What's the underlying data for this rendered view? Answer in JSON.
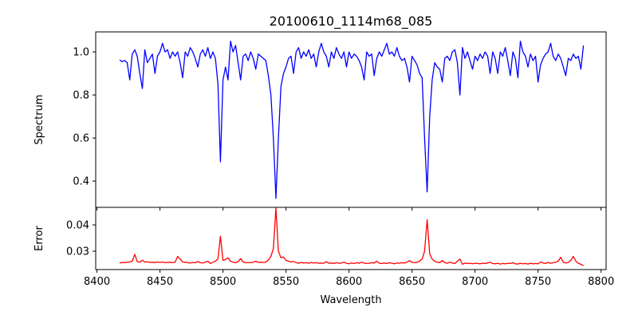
{
  "chart_data": [
    {
      "type": "line",
      "title": "20100610_1114m68_085",
      "xlabel": "",
      "ylabel": "Spectrum",
      "xlim": [
        8399,
        8804
      ],
      "ylim": [
        0.278,
        1.093
      ],
      "xticks": [
        8400,
        8450,
        8500,
        8550,
        8600,
        8650,
        8700,
        8750,
        8800
      ],
      "yticks": [
        0.4,
        0.6,
        0.8,
        1.0
      ],
      "ytick_labels": [
        "0.4",
        "0.6",
        "0.8",
        "1.0"
      ],
      "color": "#0000ff",
      "x_start": 8418,
      "x_step": 2,
      "values": [
        0.963,
        0.955,
        0.96,
        0.95,
        0.87,
        0.99,
        1.01,
        0.98,
        0.9,
        0.83,
        1.01,
        0.95,
        0.97,
        0.99,
        0.9,
        0.98,
        1.0,
        1.04,
        1.0,
        1.01,
        0.97,
        1.0,
        0.98,
        1.0,
        0.95,
        0.88,
        1.0,
        0.98,
        1.02,
        1.0,
        0.97,
        0.93,
        0.99,
        1.01,
        0.98,
        1.02,
        0.97,
        1.0,
        0.97,
        0.85,
        0.49,
        0.87,
        0.93,
        0.87,
        1.05,
        1.0,
        1.03,
        0.95,
        0.87,
        0.98,
        0.99,
        0.96,
        1.0,
        0.97,
        0.92,
        0.99,
        0.98,
        0.97,
        0.96,
        0.89,
        0.8,
        0.6,
        0.32,
        0.6,
        0.84,
        0.9,
        0.93,
        0.97,
        0.98,
        0.9,
        1.0,
        1.02,
        0.97,
        1.0,
        0.98,
        1.01,
        0.97,
        0.99,
        0.93,
        1.0,
        1.04,
        1.0,
        0.98,
        0.93,
        1.0,
        0.97,
        1.02,
        0.99,
        0.97,
        1.0,
        0.93,
        1.0,
        0.97,
        0.99,
        0.98,
        0.96,
        0.93,
        0.87,
        1.0,
        0.98,
        0.99,
        0.89,
        0.97,
        1.0,
        0.98,
        1.01,
        1.04,
        0.99,
        1.0,
        0.98,
        1.02,
        0.98,
        0.96,
        0.97,
        0.93,
        0.86,
        0.98,
        0.96,
        0.94,
        0.9,
        0.88,
        0.6,
        0.35,
        0.7,
        0.87,
        0.95,
        0.93,
        0.92,
        0.86,
        0.97,
        0.98,
        0.96,
        1.0,
        1.01,
        0.95,
        0.8,
        1.02,
        0.97,
        1.0,
        0.96,
        0.92,
        0.98,
        0.96,
        0.99,
        0.97,
        1.0,
        0.98,
        0.9,
        1.0,
        0.97,
        0.9,
        1.0,
        0.98,
        1.02,
        0.96,
        0.89,
        1.0,
        0.97,
        0.88,
        1.05,
        1.0,
        0.98,
        0.93,
        0.99,
        0.96,
        0.98,
        0.86,
        0.94,
        0.97,
        0.99,
        1.0,
        1.04,
        0.98,
        0.96,
        0.99,
        0.97,
        0.93,
        0.89,
        0.97,
        0.96,
        0.99,
        0.97,
        0.98,
        0.92,
        1.03
      ]
    },
    {
      "type": "line",
      "title": "",
      "xlabel": "Wavelength",
      "ylabel": "Error",
      "xlim": [
        8399,
        8804
      ],
      "ylim": [
        0.023,
        0.0467
      ],
      "xticks": [
        8400,
        8450,
        8500,
        8550,
        8600,
        8650,
        8700,
        8750,
        8800
      ],
      "xtick_labels": [
        "8400",
        "8450",
        "8500",
        "8550",
        "8600",
        "8650",
        "8700",
        "8750",
        "8800"
      ],
      "yticks": [
        0.03,
        0.04
      ],
      "ytick_labels": [
        "0.03",
        "0.04"
      ],
      "color": "#ff0000",
      "x_start": 8418,
      "x_step": 2,
      "values": [
        0.0255,
        0.0257,
        0.0256,
        0.0258,
        0.0259,
        0.0262,
        0.0288,
        0.026,
        0.0258,
        0.0266,
        0.0258,
        0.026,
        0.0257,
        0.0258,
        0.0256,
        0.0259,
        0.0257,
        0.0259,
        0.0256,
        0.0257,
        0.0258,
        0.0256,
        0.0258,
        0.028,
        0.027,
        0.0259,
        0.0258,
        0.0256,
        0.0255,
        0.0257,
        0.0256,
        0.026,
        0.0256,
        0.0255,
        0.0258,
        0.0262,
        0.0253,
        0.0258,
        0.0262,
        0.027,
        0.0357,
        0.0265,
        0.0268,
        0.0275,
        0.0262,
        0.0258,
        0.0256,
        0.026,
        0.0272,
        0.0259,
        0.0256,
        0.0257,
        0.0256,
        0.0258,
        0.0262,
        0.0257,
        0.0258,
        0.0257,
        0.0259,
        0.0266,
        0.028,
        0.031,
        0.0465,
        0.03,
        0.0275,
        0.0278,
        0.0265,
        0.0262,
        0.0259,
        0.0261,
        0.0256,
        0.0254,
        0.0257,
        0.0255,
        0.0256,
        0.0254,
        0.0257,
        0.0255,
        0.0256,
        0.0254,
        0.0255,
        0.0254,
        0.026,
        0.0254,
        0.0255,
        0.0253,
        0.0256,
        0.0254,
        0.0255,
        0.0258,
        0.0254,
        0.0252,
        0.0255,
        0.0253,
        0.0256,
        0.0254,
        0.0258,
        0.0255,
        0.0253,
        0.0254,
        0.0256,
        0.0255,
        0.0262,
        0.0254,
        0.0253,
        0.0255,
        0.0253,
        0.0256,
        0.0254,
        0.0252,
        0.0255,
        0.0254,
        0.0256,
        0.0255,
        0.0258,
        0.0264,
        0.0258,
        0.0256,
        0.0258,
        0.0262,
        0.027,
        0.03,
        0.042,
        0.029,
        0.027,
        0.0262,
        0.0258,
        0.0256,
        0.0265,
        0.0256,
        0.0254,
        0.0258,
        0.0255,
        0.0253,
        0.0262,
        0.027,
        0.025,
        0.0255,
        0.0253,
        0.0254,
        0.0252,
        0.0254,
        0.0253,
        0.0252,
        0.0254,
        0.0253,
        0.0255,
        0.0258,
        0.0253,
        0.0252,
        0.0254,
        0.0251,
        0.0253,
        0.0252,
        0.0254,
        0.0253,
        0.0256,
        0.0252,
        0.0251,
        0.0254,
        0.0252,
        0.0253,
        0.0251,
        0.0254,
        0.0252,
        0.0253,
        0.0252,
        0.0259,
        0.0255,
        0.0253,
        0.0257,
        0.0254,
        0.0256,
        0.0258,
        0.0262,
        0.0277,
        0.0258,
        0.0255,
        0.0257,
        0.0265,
        0.028,
        0.0262,
        0.0254,
        0.025,
        0.0245
      ]
    }
  ]
}
